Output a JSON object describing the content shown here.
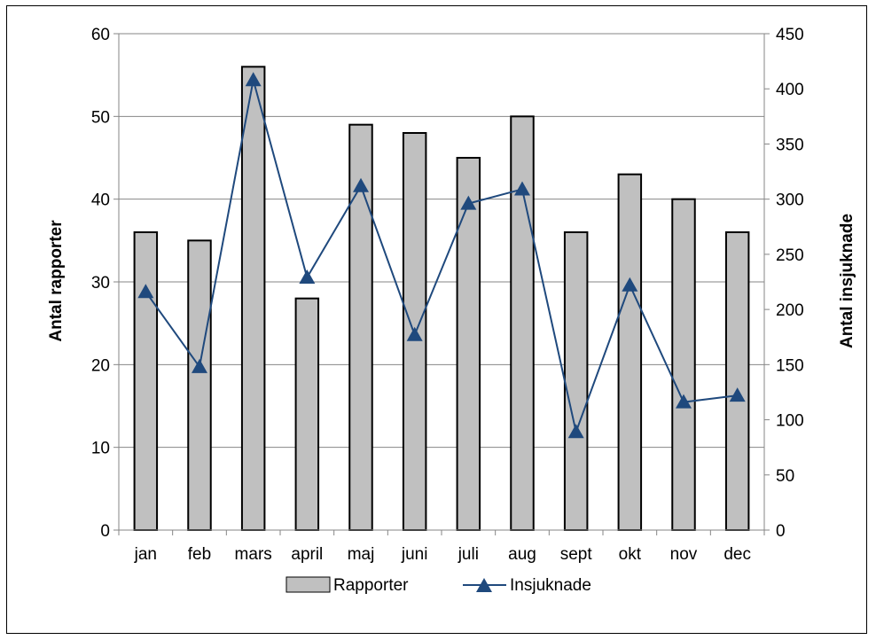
{
  "chart_data": {
    "type": "bar+line",
    "categories": [
      "jan",
      "feb",
      "mars",
      "april",
      "maj",
      "juni",
      "juli",
      "aug",
      "sept",
      "okt",
      "nov",
      "dec"
    ],
    "series": [
      {
        "name": "Rapporter",
        "type": "bar",
        "axis": "left",
        "values": [
          36,
          35,
          56,
          28,
          49,
          48,
          45,
          50,
          36,
          43,
          40,
          36
        ]
      },
      {
        "name": "Insjuknade",
        "type": "line",
        "axis": "right",
        "values": [
          216,
          148,
          408,
          229,
          312,
          177,
          296,
          309,
          89,
          222,
          116,
          122
        ]
      }
    ],
    "ylabel": "Antal rapporter",
    "ylabel_right": "Antal insjuknade",
    "ylim": [
      0,
      60
    ],
    "ylim_right": [
      0,
      450
    ],
    "yticks": [
      "0",
      "10",
      "20",
      "30",
      "40",
      "50",
      "60"
    ],
    "yticks_right": [
      "0",
      "50",
      "100",
      "150",
      "200",
      "250",
      "300",
      "350",
      "400",
      "450"
    ],
    "grid": true,
    "legend_position": "bottom",
    "colors": {
      "bar_fill": "#C0C0C0",
      "bar_stroke": "#000000",
      "line": "#1F497D",
      "marker": "#1F497D",
      "grid": "#868686"
    }
  }
}
